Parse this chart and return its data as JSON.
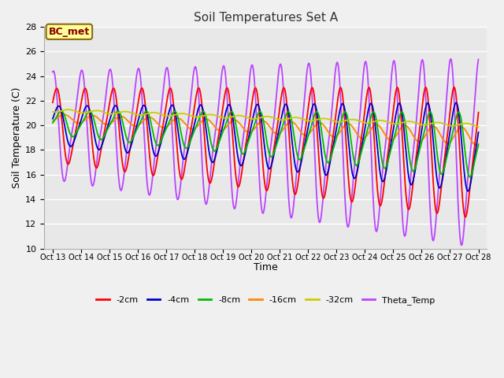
{
  "title": "Soil Temperatures Set A",
  "xlabel": "Time",
  "ylabel": "Soil Temperature (C)",
  "ylim": [
    10,
    28
  ],
  "yticks": [
    10,
    12,
    14,
    16,
    18,
    20,
    22,
    24,
    26,
    28
  ],
  "xtick_labels": [
    "Oct 13",
    "Oct 14",
    "Oct 15",
    "Oct 16",
    "Oct 17",
    "Oct 18",
    "Oct 19",
    "Oct 20",
    "Oct 21",
    "Oct 22",
    "Oct 23",
    "Oct 24",
    "Oct 25",
    "Oct 26",
    "Oct 27",
    "Oct 28"
  ],
  "fig_bg_color": "#f0f0f0",
  "plot_bg_color": "#e8e8e8",
  "grid_color": "#d0d0d0",
  "annotation_text": "BC_met",
  "annotation_fg": "#8b0000",
  "annotation_bg": "#ffff99",
  "annotation_border": "#8b6914",
  "series_colors": {
    "neg2cm": "#ff0000",
    "neg4cm": "#0000cc",
    "neg8cm": "#00bb00",
    "neg16cm": "#ff8800",
    "neg32cm": "#cccc00",
    "theta": "#bb44ff"
  },
  "series_labels": {
    "neg2cm": "-2cm",
    "neg4cm": "-4cm",
    "neg8cm": "-8cm",
    "neg16cm": "-16cm",
    "neg32cm": "-32cm",
    "theta": "Theta_Temp"
  }
}
